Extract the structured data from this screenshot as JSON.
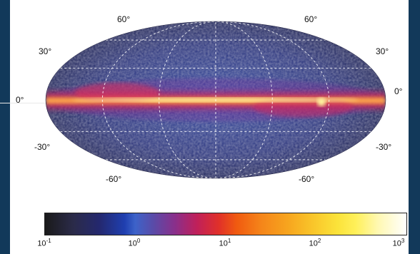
{
  "chart_data": {
    "type": "heatmap",
    "projection": "mollweide",
    "latitude_labels": {
      "top": [
        "60°",
        "60°"
      ],
      "upper": [
        "30°",
        "30°"
      ],
      "equator": [
        "0°",
        "0°"
      ],
      "lower": [
        "-30°",
        "-30°"
      ],
      "bottom": [
        "-60°",
        "-60°"
      ]
    },
    "colorbar": {
      "scale": "log",
      "range": [
        0.1,
        1000
      ],
      "ticks": [
        {
          "base": "10",
          "exp": "-1"
        },
        {
          "base": "10",
          "exp": "0"
        },
        {
          "base": "10",
          "exp": "1"
        },
        {
          "base": "10",
          "exp": "2"
        },
        {
          "base": "10",
          "exp": "3"
        }
      ]
    },
    "grid": true,
    "colors": {
      "background_sky": "#2a2f7a",
      "plane_core": "#fff27a",
      "plane_mid": "#ff5a1e",
      "plane_outer": "#d0205a",
      "grid_line": "#ffffff",
      "frame": "#12395a"
    }
  }
}
